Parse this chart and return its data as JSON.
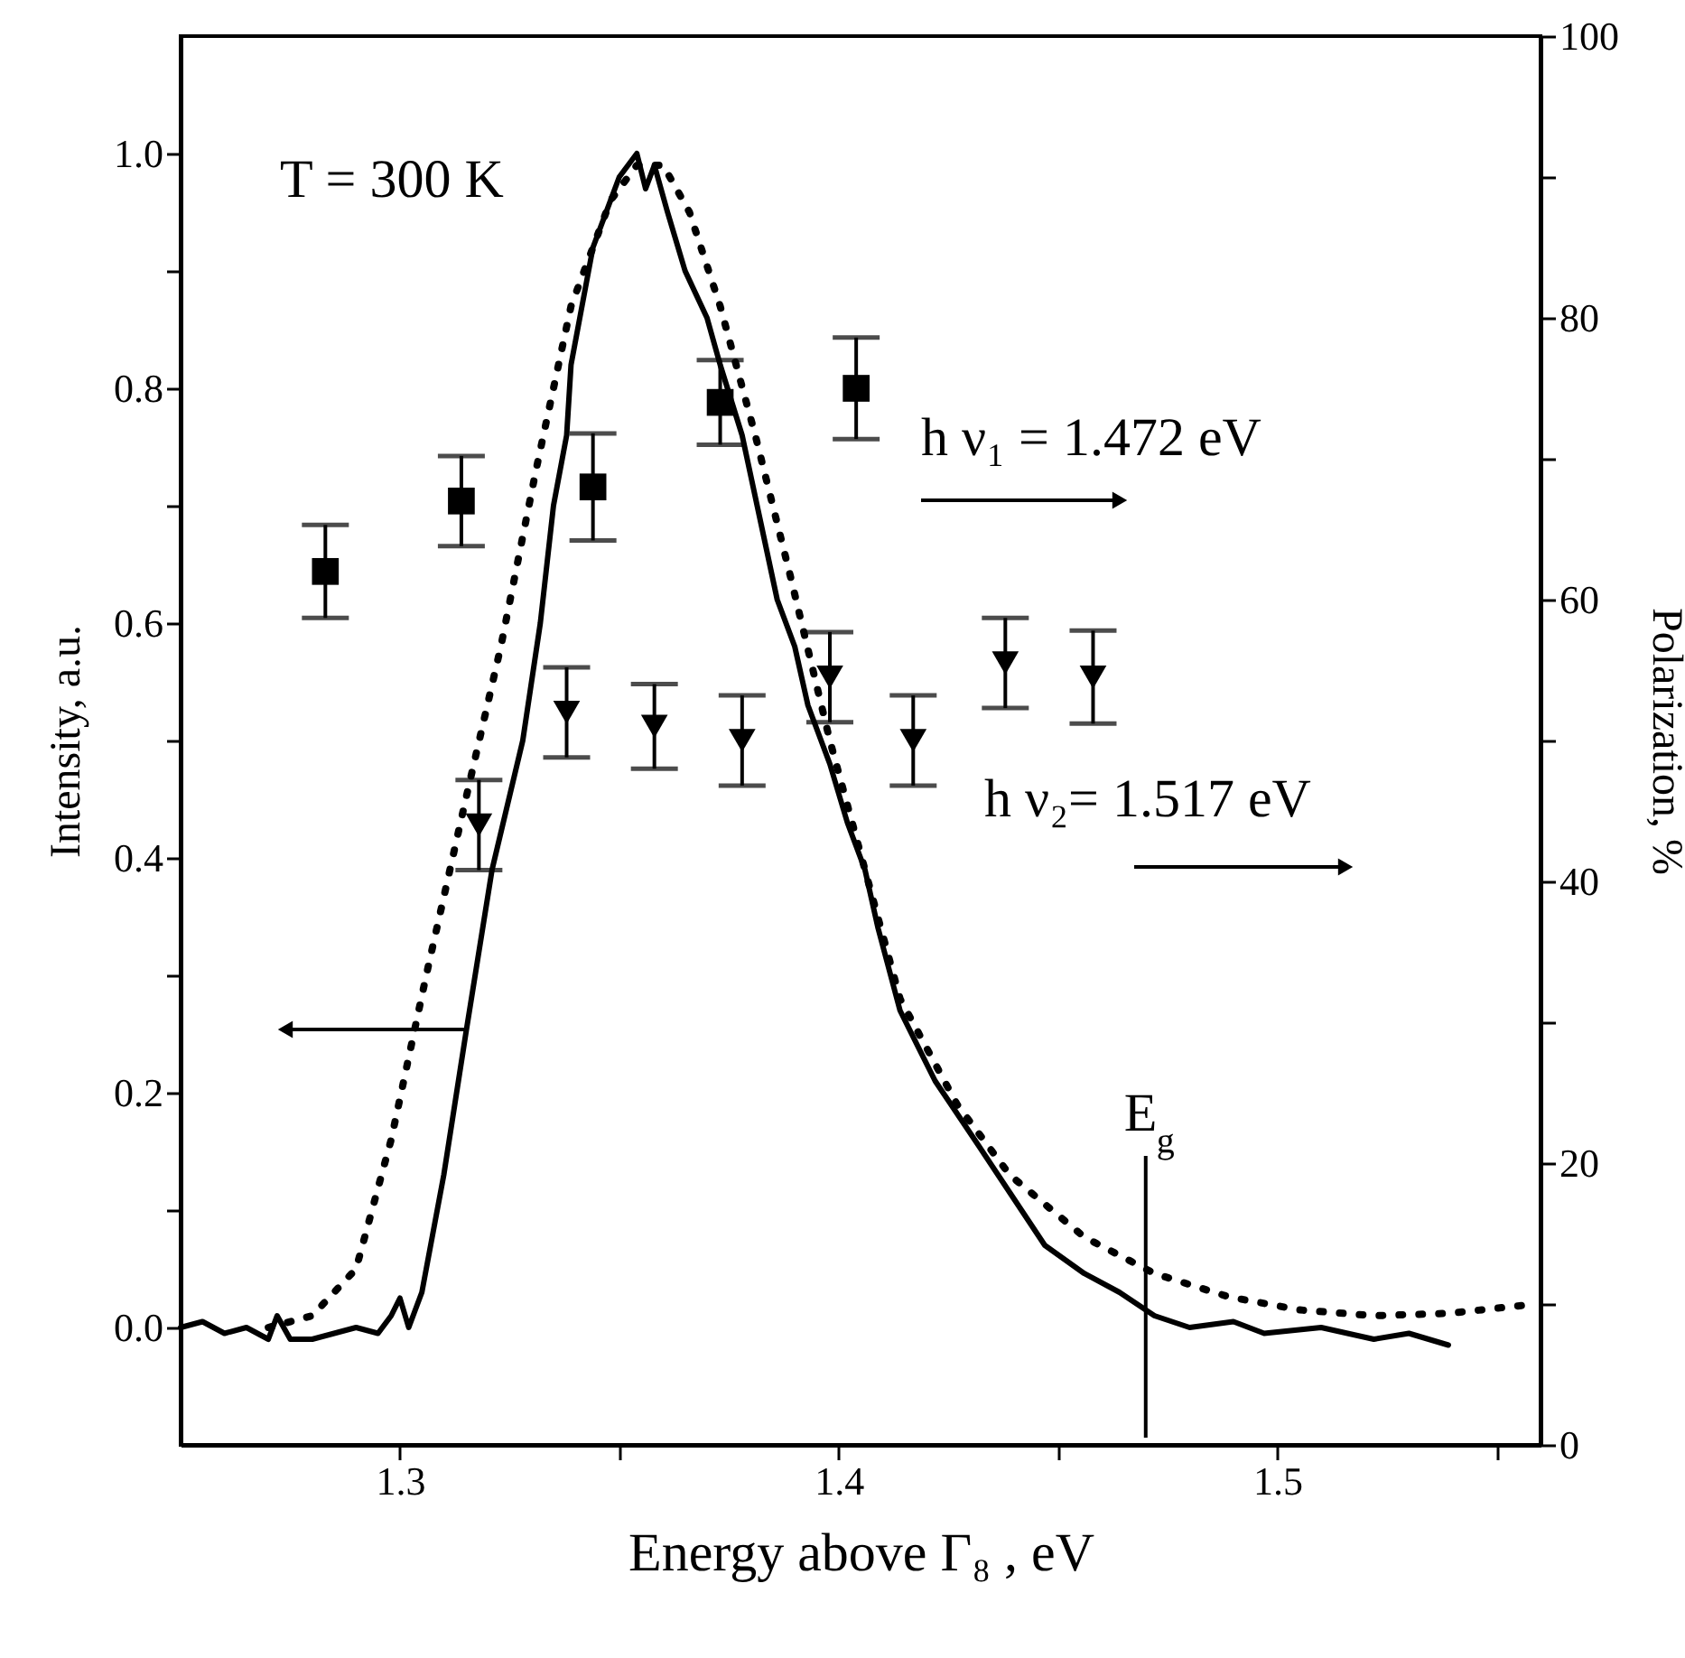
{
  "chart_data": {
    "type": "line",
    "xlabel": "Energy above Γ₈ ,  eV",
    "ylabel": "Intensity, a.u.",
    "y2label": "Polarization, %",
    "xlim": [
      1.25,
      1.56
    ],
    "xticks": [
      1.3,
      {
        "value": 1.35,
        "label": null
      },
      1.4,
      {
        "value": 1.45,
        "label": null
      },
      1.5,
      {
        "value": 1.55,
        "label": null
      }
    ],
    "ylim": [
      -0.1,
      1.1
    ],
    "yticks": [
      {
        "value": 0,
        "label": "0.0"
      },
      {
        "value": 0.1,
        "label": null
      },
      0.2,
      {
        "value": 0.3,
        "label": null
      },
      0.4,
      {
        "value": 0.5,
        "label": null
      },
      0.6,
      {
        "value": 0.7,
        "label": null
      },
      0.8,
      {
        "value": 0.9,
        "label": null
      },
      {
        "value": 1,
        "label": "1.0"
      }
    ],
    "y2lim": [
      0,
      100
    ],
    "y2ticks": [
      0,
      {
        "value": 10,
        "label": null
      },
      20,
      {
        "value": 30,
        "label": null
      },
      40,
      {
        "value": 50,
        "label": null
      },
      60,
      {
        "value": 70,
        "label": null
      },
      80,
      {
        "value": 90,
        "label": null
      },
      100
    ],
    "grid": false,
    "annotations": [
      "T = 300 K",
      "h ν₁ = 1.472 eV",
      "h ν₂= 1.517 eV"
    ],
    "ref_lines": [
      {
        "axis": "x",
        "value": 1.47,
        "label": "E$_{g}$"
      }
    ],
    "series": [
      {
        "color": "#000000",
        "line_style": "solid",
        "marker": "none",
        "x": [
          1.25,
          1.255,
          1.26,
          1.265,
          1.27,
          1.272,
          1.275,
          1.28,
          1.285,
          1.29,
          1.295,
          1.298,
          1.3,
          1.302,
          1.305,
          1.31,
          1.315,
          1.321,
          1.328,
          1.332,
          1.335,
          1.338,
          1.339,
          1.344,
          1.35,
          1.354,
          1.356,
          1.358,
          1.361,
          1.365,
          1.37,
          1.373,
          1.378,
          1.382,
          1.386,
          1.39,
          1.393,
          1.398,
          1.402,
          1.406,
          1.409,
          1.414,
          1.422,
          1.431,
          1.439,
          1.447,
          1.456,
          1.464,
          1.472,
          1.48,
          1.49,
          1.497,
          1.51,
          1.522,
          1.53,
          1.539
        ],
        "values": [
          0.0,
          0.005,
          -0.005,
          0.0,
          -0.01,
          0.01,
          -0.01,
          -0.01,
          -0.005,
          0.0,
          -0.005,
          0.01,
          0.025,
          0.0,
          0.03,
          0.13,
          0.25,
          0.39,
          0.5,
          0.6,
          0.7,
          0.76,
          0.82,
          0.92,
          0.98,
          1.0,
          0.97,
          0.99,
          0.95,
          0.9,
          0.86,
          0.82,
          0.76,
          0.69,
          0.62,
          0.58,
          0.53,
          0.48,
          0.43,
          0.39,
          0.34,
          0.27,
          0.21,
          0.16,
          0.115,
          0.07,
          0.046,
          0.03,
          0.01,
          0.0,
          0.005,
          -0.005,
          0.0,
          -0.01,
          -0.005,
          -0.015
        ]
      },
      {
        "color": "#000000",
        "line_style": "dotted",
        "marker": "none",
        "x": [
          1.27,
          1.28,
          1.29,
          1.298,
          1.306,
          1.315,
          1.323,
          1.331,
          1.339,
          1.348,
          1.354,
          1.36,
          1.366,
          1.373,
          1.381,
          1.389,
          1.398,
          1.406,
          1.414,
          1.427,
          1.439,
          1.456,
          1.472,
          1.489,
          1.505,
          1.522,
          1.539,
          1.559
        ],
        "values": [
          0.0,
          0.01,
          0.05,
          0.16,
          0.3,
          0.45,
          0.58,
          0.73,
          0.87,
          0.96,
          0.99,
          0.99,
          0.95,
          0.87,
          0.76,
          0.64,
          0.5,
          0.39,
          0.28,
          0.19,
          0.13,
          0.077,
          0.046,
          0.026,
          0.015,
          0.01,
          0.012,
          0.02
        ]
      },
      {
        "type": "scatter",
        "axis": "y2",
        "color": "#000000",
        "marker": "square",
        "x": [
          1.283,
          1.314,
          1.344,
          1.373,
          1.404
        ],
        "values": [
          62,
          67,
          68,
          74,
          75
        ],
        "errors": [
          3.3,
          3.2,
          3.8,
          3.0,
          3.6
        ]
      },
      {
        "type": "scatter",
        "axis": "y2",
        "color": "#000000",
        "marker": "triangle",
        "x": [
          1.318,
          1.338,
          1.358,
          1.378,
          1.398,
          1.417,
          1.438,
          1.458
        ],
        "values": [
          44,
          52,
          51,
          50,
          54.5,
          50,
          55.5,
          54.5
        ],
        "errors": [
          3.2,
          3.2,
          3.0,
          3.2,
          3.2,
          3.2,
          3.2,
          3.3
        ]
      }
    ]
  }
}
